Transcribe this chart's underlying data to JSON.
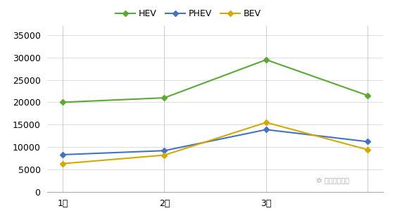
{
  "months": [
    "1月",
    "2月",
    "3月",
    ""
  ],
  "hev": [
    20000,
    21000,
    29500,
    21500
  ],
  "phev": [
    8300,
    9200,
    13900,
    11200
  ],
  "bev": [
    6300,
    8200,
    15500,
    9400
  ],
  "hev_color": "#5aaa32",
  "phev_color": "#4472c4",
  "bev_color": "#d4aa00",
  "legend_labels": [
    "HEV",
    "PHEV",
    "BEV"
  ],
  "ylim": [
    0,
    37000
  ],
  "yticks": [
    0,
    5000,
    10000,
    15000,
    20000,
    25000,
    30000,
    35000
  ],
  "grid_color": "#d0d0d0",
  "bg_color": "#ffffff",
  "watermark": "汽车电子设计",
  "marker": "D",
  "linewidth": 1.5,
  "markersize": 4
}
